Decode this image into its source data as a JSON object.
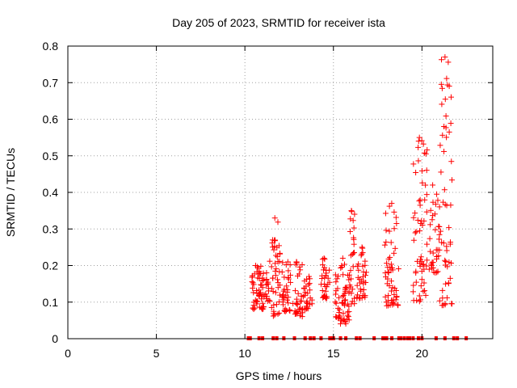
{
  "chart_data": {
    "type": "scatter",
    "title": "Day 205 of 2023, SRMTID for receiver ista",
    "xlabel": "GPS time / hours",
    "ylabel": "SRMTID / TECUs",
    "xlim": [
      0,
      24
    ],
    "ylim": [
      0,
      0.8
    ],
    "x_ticks": [
      0,
      5,
      10,
      15,
      20
    ],
    "x_tick_labels": [
      "0",
      "5",
      "10",
      "15",
      "20"
    ],
    "y_ticks": [
      0,
      0.1,
      0.2,
      0.3,
      0.4,
      0.5,
      0.6,
      0.7,
      0.8
    ],
    "y_tick_labels": [
      "0",
      "0.1",
      "0.2",
      "0.3",
      "0.4",
      "0.5",
      "0.6",
      "0.7",
      "0.8"
    ],
    "grid": true,
    "marker": "plus",
    "color": "#ff0000",
    "clusters": [
      {
        "x_start": 10.4,
        "x_end": 10.9,
        "y_min": 0.08,
        "y_max": 0.2,
        "count": 40
      },
      {
        "x_start": 10.9,
        "x_end": 11.4,
        "y_min": 0.08,
        "y_max": 0.18,
        "count": 30
      },
      {
        "x_start": 11.4,
        "x_end": 12.0,
        "y_min": 0.06,
        "y_max": 0.33,
        "count": 45
      },
      {
        "x_start": 12.1,
        "x_end": 12.6,
        "y_min": 0.07,
        "y_max": 0.21,
        "count": 35
      },
      {
        "x_start": 12.7,
        "x_end": 13.3,
        "y_min": 0.06,
        "y_max": 0.21,
        "count": 35
      },
      {
        "x_start": 13.3,
        "x_end": 13.8,
        "y_min": 0.08,
        "y_max": 0.17,
        "count": 25
      },
      {
        "x_start": 14.3,
        "x_end": 14.8,
        "y_min": 0.11,
        "y_max": 0.22,
        "count": 30
      },
      {
        "x_start": 15.1,
        "x_end": 15.9,
        "y_min": 0.04,
        "y_max": 0.22,
        "count": 60
      },
      {
        "x_start": 15.9,
        "x_end": 16.2,
        "y_min": 0.08,
        "y_max": 0.35,
        "count": 25
      },
      {
        "x_start": 16.3,
        "x_end": 16.9,
        "y_min": 0.11,
        "y_max": 0.25,
        "count": 35
      },
      {
        "x_start": 17.9,
        "x_end": 18.7,
        "y_min": 0.09,
        "y_max": 0.37,
        "count": 55
      },
      {
        "x_start": 19.5,
        "x_end": 20.3,
        "y_min": 0.1,
        "y_max": 0.55,
        "count": 60
      },
      {
        "x_start": 20.4,
        "x_end": 21.0,
        "y_min": 0.18,
        "y_max": 0.42,
        "count": 35
      },
      {
        "x_start": 21.0,
        "x_end": 21.7,
        "y_min": 0.09,
        "y_max": 0.77,
        "count": 55
      }
    ],
    "zero_values_x": [
      10.2,
      10.3,
      10.8,
      11.0,
      11.6,
      11.8,
      12.2,
      12.8,
      13.4,
      13.7,
      13.9,
      14.3,
      14.8,
      14.9,
      15.0,
      15.4,
      15.7,
      16.3,
      16.5,
      17.3,
      17.8,
      17.9,
      18.0,
      18.3,
      18.7,
      18.8,
      19.0,
      19.2,
      19.3,
      19.5,
      19.8,
      20.0,
      20.8,
      21.3,
      21.8,
      22.0,
      22.5
    ]
  }
}
